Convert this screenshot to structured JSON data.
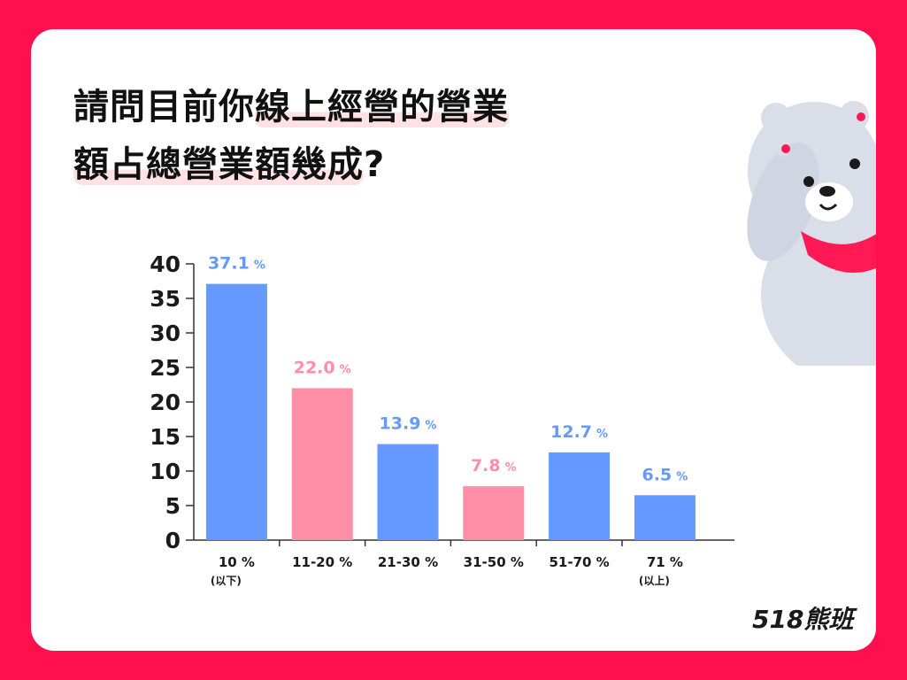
{
  "title": {
    "line1_plain": "請問目前你",
    "line1_highlight": "線上經營的營業",
    "line2_highlight": "額占總營業額幾成",
    "line2_end": "?"
  },
  "brand": "518熊班",
  "colors": {
    "background": "#ff0f4e",
    "bar_blue": "#6699ff",
    "bar_pink": "#ff8fa6",
    "bear_body": "#d9dee8",
    "scarf": "#ff1a56"
  },
  "icons": [
    "bear-mascot-icon"
  ],
  "chart_data": {
    "type": "bar",
    "categories": [
      "10 %",
      "11-20 %",
      "21-30 %",
      "31-50 %",
      "51-70 %",
      "71 %"
    ],
    "category_sublabels": [
      "(以下)",
      "",
      "",
      "",
      "",
      "(以上)"
    ],
    "values": [
      37.1,
      22.0,
      13.9,
      7.8,
      12.7,
      6.5
    ],
    "data_labels": [
      "37.1",
      "22.0",
      "13.9",
      "7.8",
      "12.7",
      "6.5"
    ],
    "data_label_unit": "%",
    "bar_colors": [
      "#6699ff",
      "#ff8fa6",
      "#6699ff",
      "#ff8fa6",
      "#6699ff",
      "#6699ff"
    ],
    "ylim": [
      0,
      40
    ],
    "yticks": [
      0,
      5,
      10,
      15,
      20,
      25,
      30,
      35,
      40
    ],
    "title": "",
    "xlabel": "",
    "ylabel": "",
    "grid": false,
    "legend": "none"
  }
}
